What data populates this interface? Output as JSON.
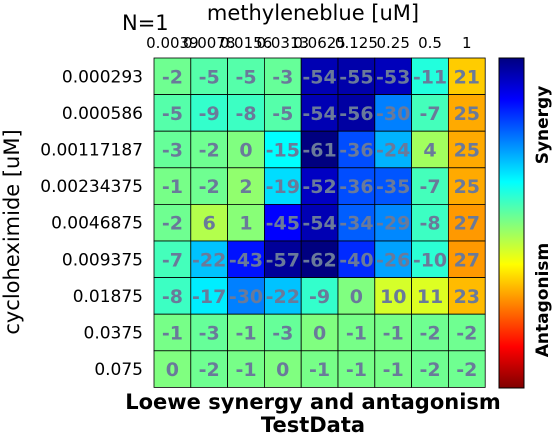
{
  "chart_data": {
    "type": "heatmap",
    "annotation": "N=1",
    "xlabel": "methyleneblue [uM]",
    "ylabel": "cycloheximide [uM]",
    "title_line1": "Loewe synergy and antagonism",
    "title_line2": "TestData",
    "x_categories": [
      "0.0039",
      "0.0078",
      "0.0156",
      "0.0313",
      "0.0625",
      "0.125",
      "0.25",
      "0.5",
      "1"
    ],
    "x_tick_labels": [
      "0.0039",
      "0.0078",
      "0.0156",
      "0.0313",
      "0.0625",
      "0.125",
      "0.25",
      "0.5",
      "1"
    ],
    "y_categories": [
      "0.000293",
      "0.000586",
      "0.00117187",
      "0.00234375",
      "0.0046875",
      "0.009375",
      "0.01875",
      "0.0375",
      "0.075"
    ],
    "values": [
      [
        -2,
        -5,
        -5,
        -3,
        -54,
        -55,
        -53,
        -11,
        21
      ],
      [
        -5,
        -9,
        -8,
        -5,
        -54,
        -56,
        -30,
        -7,
        25
      ],
      [
        -3,
        -2,
        0,
        -15,
        -61,
        -36,
        -24,
        4,
        25
      ],
      [
        -1,
        -2,
        2,
        -19,
        -52,
        -36,
        -35,
        -7,
        25
      ],
      [
        -2,
        6,
        1,
        -45,
        -54,
        -34,
        -29,
        -8,
        27
      ],
      [
        -7,
        -22,
        -43,
        -57,
        -62,
        -40,
        -26,
        -10,
        27
      ],
      [
        -8,
        -17,
        -30,
        -22,
        -9,
        0,
        10,
        11,
        23
      ],
      [
        -1,
        -3,
        -1,
        -3,
        0,
        -1,
        -1,
        -2,
        -2
      ],
      [
        0,
        -2,
        -1,
        0,
        -1,
        -1,
        -1,
        -2,
        -2
      ]
    ],
    "color_range": [
      -60,
      60
    ],
    "colormap": "jet",
    "colorbar_labels": {
      "top": "Synergy",
      "bottom": "Antagonism"
    }
  }
}
